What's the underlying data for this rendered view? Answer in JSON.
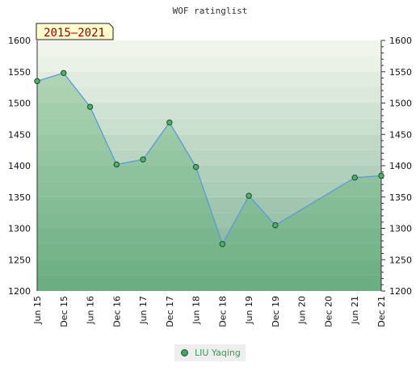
{
  "chart_data": {
    "type": "line",
    "title": "WOF ratinglist",
    "badge": "2015–2021",
    "xlabel": "",
    "ylabel": "",
    "ylim": [
      1200,
      1600
    ],
    "yticks": [
      1200,
      1250,
      1300,
      1350,
      1400,
      1450,
      1500,
      1550,
      1600
    ],
    "categories": [
      "Jun 15",
      "Dec 15",
      "Jun 16",
      "Dec 16",
      "Jun 17",
      "Dec 17",
      "Jun 18",
      "Dec 18",
      "Jun 19",
      "Dec 19",
      "Jun 20",
      "Dec 20",
      "Jun 21",
      "Dec 21"
    ],
    "series": [
      {
        "name": "LIU Yaqing",
        "x": [
          0,
          1,
          2,
          3,
          4,
          5,
          6,
          7,
          8,
          9,
          12,
          13
        ],
        "values": [
          1535,
          1548,
          1494,
          1402,
          1410,
          1469,
          1398,
          1275,
          1352,
          1305,
          1381,
          1384
        ]
      }
    ],
    "legend": "bottom-center",
    "grid": true,
    "colors": {
      "line": "#5b9bd5",
      "marker_fill": "#4fb06a",
      "marker_edge": "#1e4d2b",
      "legend_text": "#3a9a55",
      "badge_fill": "#ffffcc",
      "badge_text": "#8b0000"
    }
  }
}
